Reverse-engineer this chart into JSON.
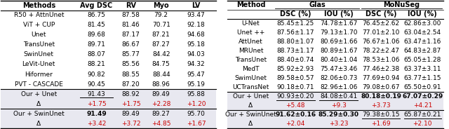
{
  "left_table": {
    "headers": [
      "Methods",
      "Avg DSC",
      "RV",
      "Myo",
      "LV"
    ],
    "rows": [
      [
        "R50 + AttnUnet",
        "86.75",
        "87.58",
        "79.2",
        "93.47"
      ],
      [
        "ViT + CUP",
        "81.45",
        "81.46",
        "70.71",
        "92.18"
      ],
      [
        "Unet",
        "89.68",
        "87.17",
        "87.21",
        "94.68"
      ],
      [
        "TransUnet",
        "89.71",
        "86.67",
        "87.27",
        "95.18"
      ],
      [
        "SwinUnet",
        "88.07",
        "85.77",
        "84.42",
        "94.03"
      ],
      [
        "LeVit-Unet",
        "88.21",
        "85.56",
        "84.75",
        "94.32"
      ],
      [
        "Hiformer",
        "90.82",
        "88.55",
        "88.44",
        "95.47"
      ],
      [
        "PVT - CASCADE",
        "90.45",
        "87.20",
        "88.96",
        "95.19"
      ]
    ],
    "highlight_rows": [
      [
        "Our + Unet",
        "91.43",
        "88.92",
        "89.49",
        "95.88"
      ],
      [
        "Δ",
        "+1.75",
        "+1.75",
        "+2.28",
        "+1.20"
      ],
      [
        "Our + SwinUnet",
        "91.49",
        "89.49",
        "89.27",
        "95.70"
      ],
      [
        "Δ",
        "+3.42",
        "+3.72",
        "+4.85",
        "+1.67"
      ]
    ]
  },
  "right_table": {
    "rows": [
      [
        "U-Net",
        "85.45±1.25",
        "74.78±1.67",
        "76.45±2.62",
        "62.86±3.00"
      ],
      [
        "Unet ++",
        "87.56±1.17",
        "79.13±1.70",
        "77.01±2.10",
        "63.04±2.54"
      ],
      [
        "AttUnet",
        "88.80±1.07",
        "80.69±1.66",
        "76.67±1.06",
        "63.47±1.16"
      ],
      [
        "MRUnet",
        "88.73±1.17",
        "80.89±1.67",
        "78.22±2.47",
        "64.83±2.87"
      ],
      [
        "TransUnet",
        "88.40±0.74",
        "80.40±1.04",
        "78.53±1.06",
        "65.05±1.28"
      ],
      [
        "MedT",
        "85.92±2.93",
        "75.47±3.46",
        "77.46±2.38",
        "63.37±3.11"
      ],
      [
        "SwimUnet",
        "89.58±0.57",
        "82.06±0.73",
        "77.69±0.94",
        "63.77±1.15"
      ],
      [
        "UCTransNet",
        "90.18±0.71",
        "82.96±1.06",
        "79.08±0.67",
        "65.50±0.91"
      ]
    ],
    "highlight_rows": [
      [
        "Our + Unet",
        "90.93±0.20",
        "84.08±0.41",
        "80.18±0.19",
        "67.07±0.29"
      ],
      [
        "Δ",
        "+5.48",
        "+9.3",
        "+3.73",
        "+4.21"
      ],
      [
        "Our + SwinUnet",
        "91.62±0.16",
        "85.29±0.30",
        "79.38±0.15",
        "65.87±0.21"
      ],
      [
        "Δ",
        "+2.04",
        "+3.23",
        "+1.69",
        "+2.10"
      ]
    ]
  },
  "highlight_bg": "#e8e8f0",
  "delta_color": "#cc0000",
  "font_size": 6.5,
  "header_font_size": 7.0
}
